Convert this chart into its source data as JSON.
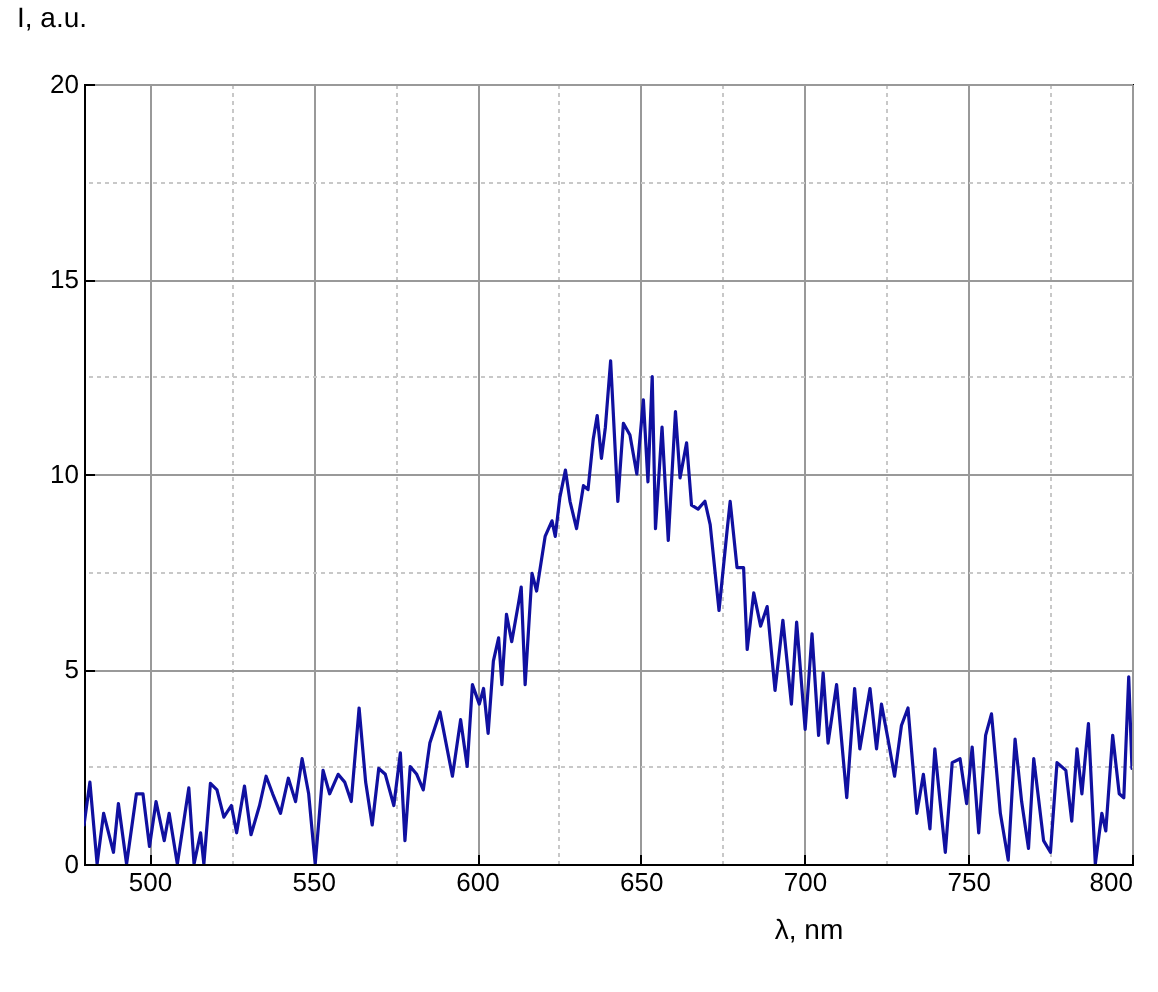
{
  "chart_data": {
    "type": "line",
    "xlabel": "λ, nm",
    "ylabel": "I, a.u.",
    "xlim": [
      480,
      800
    ],
    "xticks": [
      500,
      550,
      600,
      650,
      700,
      750,
      800
    ],
    "ylim": [
      0,
      20
    ],
    "yticks": [
      0,
      5,
      10,
      15,
      20
    ],
    "grid": true,
    "series": [
      {
        "color": "#1010a0",
        "x": [
          480,
          481.8,
          484,
          486,
          489,
          490.5,
          493,
          496,
          498,
          500,
          502,
          504.5,
          506,
          508.5,
          512,
          513.6,
          515.6,
          516.6,
          518.6,
          520.6,
          522.7,
          525,
          526.6,
          529,
          531,
          533.6,
          535.6,
          537.6,
          540,
          542.4,
          544.6,
          546.6,
          548.6,
          550.6,
          553,
          555,
          557.6,
          559.6,
          561.6,
          564,
          566,
          568,
          570,
          572,
          574.6,
          576.6,
          578,
          579.6,
          581.6,
          583.6,
          585.6,
          588.7,
          592.5,
          595,
          597,
          598.6,
          600.7,
          602,
          603.4,
          605,
          606.6,
          607.6,
          609,
          610.6,
          612.7,
          613.5,
          614.7,
          616.8,
          618.2,
          620.8,
          622.9,
          623.9,
          625.3,
          627,
          628.4,
          630.4,
          632.5,
          633.9,
          635.5,
          636.7,
          638,
          639.2,
          640.8,
          643,
          644.7,
          646.7,
          648.8,
          650.8,
          652.2,
          653.5,
          654.5,
          656.5,
          658.4,
          660.6,
          662,
          664,
          665.5,
          667.5,
          669.6,
          671.2,
          673.9,
          676.3,
          677.3,
          679.4,
          681.4,
          682.5,
          684.5,
          686.6,
          688.6,
          691,
          693.4,
          696,
          697.6,
          700.2,
          702.3,
          704.3,
          705.7,
          707.2,
          709.8,
          712.9,
          715.3,
          716.9,
          720,
          722,
          723.5,
          725.5,
          727.5,
          729.6,
          731.6,
          734.3,
          736.3,
          738.3,
          739.8,
          741.4,
          743,
          745.1,
          747.5,
          749.5,
          751.2,
          753.2,
          755.3,
          757.1,
          759.8,
          762.2,
          764.3,
          766.3,
          768.4,
          770,
          773,
          775.1,
          777.1,
          779.8,
          781.6,
          783.2,
          784.7,
          786.7,
          788.8,
          790.8,
          792,
          794.1,
          796.1,
          797.5,
          799,
          800
        ],
        "values": [
          1.0,
          2.1,
          0,
          1.3,
          0.3,
          1.55,
          0,
          1.8,
          1.8,
          0.45,
          1.6,
          0.6,
          1.3,
          0,
          1.95,
          0,
          0.8,
          0,
          2.07,
          1.9,
          1.2,
          1.5,
          0.8,
          2.0,
          0.75,
          1.5,
          2.25,
          1.8,
          1.3,
          2.2,
          1.6,
          2.7,
          1.8,
          0,
          2.4,
          1.8,
          2.3,
          2.1,
          1.6,
          4.0,
          2.1,
          1.0,
          2.45,
          2.3,
          1.5,
          2.85,
          0.6,
          2.5,
          2.3,
          1.9,
          3.1,
          3.9,
          2.25,
          3.7,
          2.5,
          4.6,
          4.1,
          4.5,
          3.35,
          5.2,
          5.8,
          4.6,
          6.4,
          5.7,
          6.7,
          7.1,
          4.6,
          7.45,
          7.0,
          8.4,
          8.8,
          8.4,
          9.4,
          10.1,
          9.3,
          8.6,
          9.7,
          9.6,
          10.9,
          11.5,
          10.4,
          11.2,
          12.9,
          9.3,
          11.3,
          11.0,
          10.0,
          11.9,
          9.8,
          12.5,
          8.6,
          11.2,
          8.3,
          11.6,
          9.9,
          10.8,
          9.2,
          9.1,
          9.3,
          8.7,
          6.5,
          8.5,
          9.3,
          7.6,
          7.6,
          5.5,
          6.95,
          6.1,
          6.6,
          4.45,
          6.25,
          4.1,
          6.2,
          3.45,
          5.9,
          3.3,
          4.9,
          3.1,
          4.6,
          1.7,
          4.5,
          2.95,
          4.5,
          2.95,
          4.1,
          3.2,
          2.25,
          3.55,
          4.0,
          1.3,
          2.3,
          0.9,
          2.95,
          1.6,
          0.3,
          2.6,
          2.7,
          1.55,
          3.0,
          0.8,
          3.3,
          3.85,
          1.3,
          0.1,
          3.2,
          1.6,
          0.4,
          2.7,
          0.6,
          0.3,
          2.6,
          2.4,
          1.1,
          2.95,
          1.8,
          3.6,
          0,
          1.3,
          0.85,
          3.3,
          1.8,
          1.7,
          4.8,
          2.45
        ]
      }
    ]
  }
}
